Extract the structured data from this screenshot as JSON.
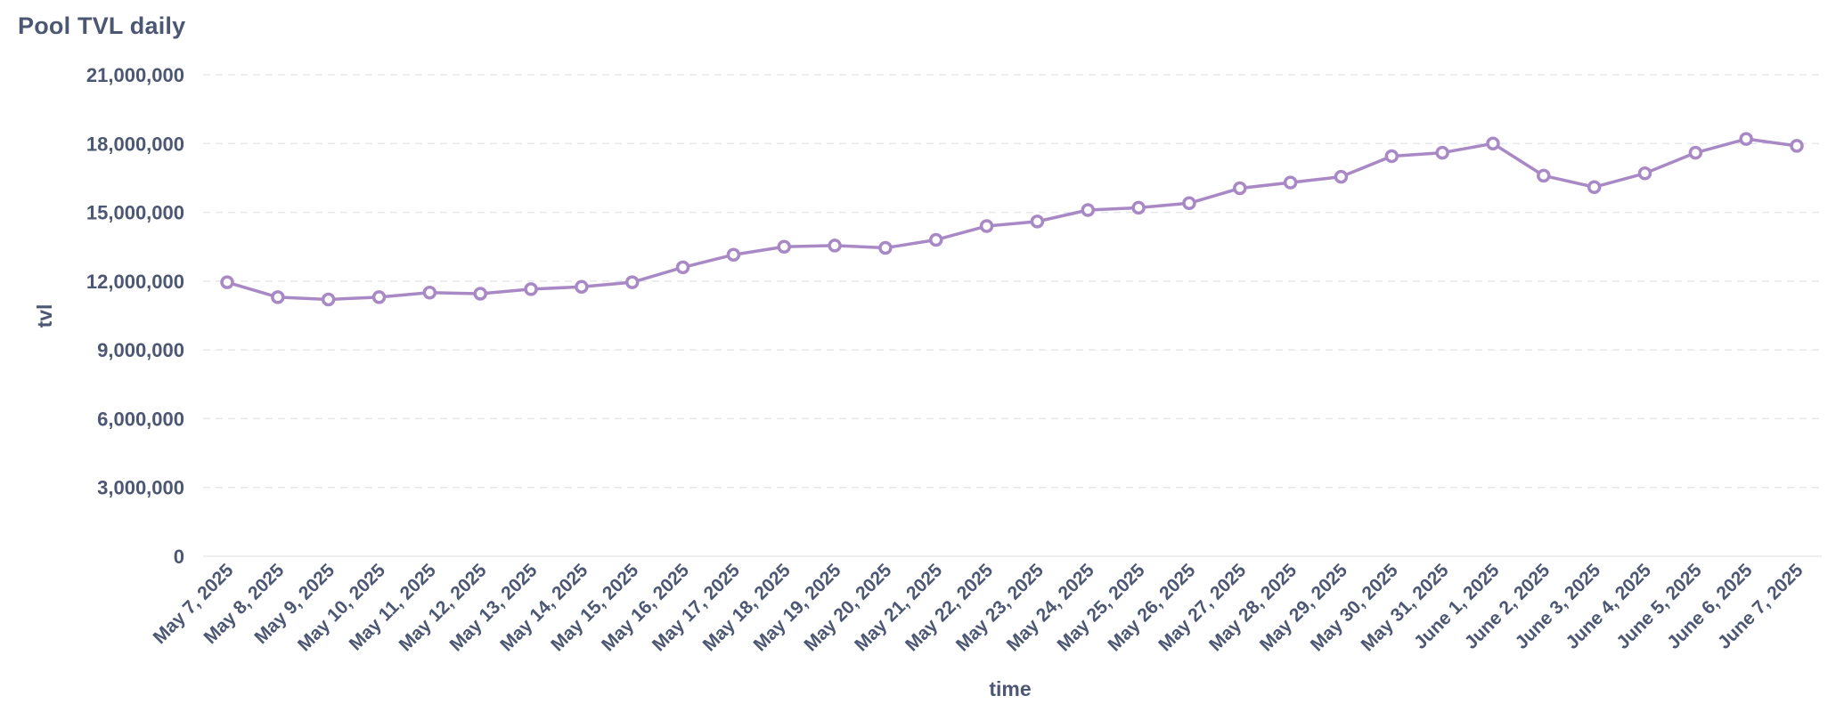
{
  "card": {
    "title": "Pool TVL daily"
  },
  "colors": {
    "series": "#a989c5",
    "text": "#4c5773",
    "grid": "#e6e8ec"
  },
  "chart_data": {
    "type": "line",
    "title": "Pool TVL daily",
    "xlabel": "time",
    "ylabel": "tvl",
    "ylim": [
      0,
      21000000
    ],
    "yticks": [
      0,
      3000000,
      6000000,
      9000000,
      12000000,
      15000000,
      18000000,
      21000000
    ],
    "ytick_labels": [
      "0",
      "3,000,000",
      "6,000,000",
      "9,000,000",
      "12,000,000",
      "15,000,000",
      "18,000,000",
      "21,000,000"
    ],
    "grid": true,
    "legend": "none",
    "categories": [
      "May 7, 2025",
      "May 8, 2025",
      "May 9, 2025",
      "May 10, 2025",
      "May 11, 2025",
      "May 12, 2025",
      "May 13, 2025",
      "May 14, 2025",
      "May 15, 2025",
      "May 16, 2025",
      "May 17, 2025",
      "May 18, 2025",
      "May 19, 2025",
      "May 20, 2025",
      "May 21, 2025",
      "May 22, 2025",
      "May 23, 2025",
      "May 24, 2025",
      "May 25, 2025",
      "May 26, 2025",
      "May 27, 2025",
      "May 28, 2025",
      "May 29, 2025",
      "May 30, 2025",
      "May 31, 2025",
      "June 1, 2025",
      "June 2, 2025",
      "June 3, 2025",
      "June 4, 2025",
      "June 5, 2025",
      "June 6, 2025",
      "June 7, 2025"
    ],
    "series": [
      {
        "values": [
          11950000,
          11300000,
          11200000,
          11300000,
          11500000,
          11450000,
          11650000,
          11750000,
          11950000,
          12600000,
          13150000,
          13500000,
          13550000,
          13450000,
          13800000,
          14400000,
          14600000,
          15100000,
          15200000,
          15400000,
          16050000,
          16300000,
          16550000,
          17450000,
          17600000,
          18000000,
          16600000,
          16100000,
          16700000,
          17600000,
          18200000,
          17900000
        ]
      }
    ]
  }
}
